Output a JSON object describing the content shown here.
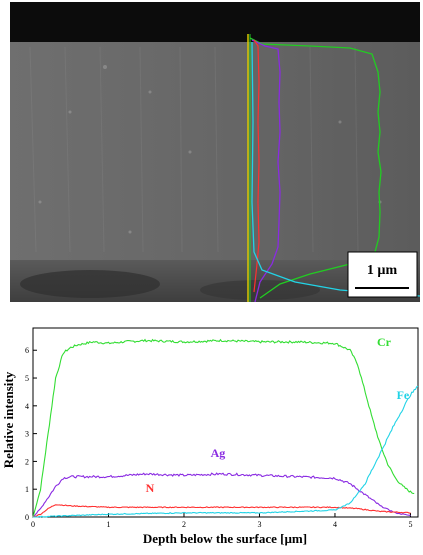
{
  "figure": {
    "micrograph": {
      "scale_bar_label": "1 µm",
      "overlay_lines": [
        {
          "element": "Cr",
          "color": "#22cc22"
        },
        {
          "element": "Ag",
          "color": "#8a2be2"
        },
        {
          "element": "N",
          "color": "#ff3030"
        },
        {
          "element": "Fe",
          "color": "#22d3e6"
        }
      ]
    }
  },
  "chart_data": {
    "type": "line",
    "title": "",
    "xlabel": "Depth below the surface [µm]",
    "ylabel": "Relative intensity",
    "xlim": [
      0,
      5.1
    ],
    "ylim": [
      0,
      6.8
    ],
    "xticks": [
      "0",
      "1",
      "2",
      "3",
      "4",
      "5"
    ],
    "yticks": [
      "0",
      "1",
      "2",
      "3",
      "4",
      "5",
      "6"
    ],
    "grid": false,
    "legend": "inline labels",
    "series": [
      {
        "name": "Cr",
        "color": "#33dd33",
        "x": [
          0.0,
          0.1,
          0.2,
          0.3,
          0.4,
          0.5,
          0.6,
          0.8,
          1.0,
          1.2,
          1.5,
          2.0,
          2.5,
          3.0,
          3.5,
          4.0,
          4.2,
          4.3,
          4.4,
          4.5,
          4.6,
          4.7,
          4.8,
          4.9,
          5.0,
          5.05
        ],
        "y": [
          0.0,
          1.0,
          3.0,
          5.0,
          5.9,
          6.1,
          6.2,
          6.3,
          6.25,
          6.3,
          6.35,
          6.3,
          6.35,
          6.3,
          6.3,
          6.25,
          6.0,
          5.5,
          4.5,
          3.5,
          2.6,
          1.9,
          1.4,
          1.1,
          0.9,
          0.85
        ]
      },
      {
        "name": "Ag",
        "color": "#8a2be2",
        "x": [
          0.0,
          0.1,
          0.2,
          0.3,
          0.4,
          0.5,
          1.0,
          1.5,
          2.0,
          2.5,
          3.0,
          3.5,
          4.0,
          4.2,
          4.4,
          4.6,
          4.8,
          5.0
        ],
        "y": [
          0.0,
          0.3,
          0.7,
          1.1,
          1.4,
          1.45,
          1.45,
          1.55,
          1.5,
          1.55,
          1.5,
          1.45,
          1.4,
          1.2,
          0.8,
          0.4,
          0.15,
          0.05
        ]
      },
      {
        "name": "N",
        "color": "#ff3030",
        "x": [
          0.0,
          0.1,
          0.2,
          0.3,
          0.5,
          1.0,
          2.0,
          3.0,
          4.0,
          4.3,
          4.6,
          5.0
        ],
        "y": [
          0.0,
          0.1,
          0.3,
          0.45,
          0.4,
          0.35,
          0.35,
          0.35,
          0.35,
          0.3,
          0.2,
          0.15
        ]
      },
      {
        "name": "Fe",
        "color": "#22d3e6",
        "x": [
          0.0,
          0.5,
          1.0,
          2.0,
          3.0,
          3.5,
          4.0,
          4.2,
          4.4,
          4.6,
          4.8,
          5.0,
          5.1
        ],
        "y": [
          0.0,
          0.05,
          0.1,
          0.15,
          0.15,
          0.2,
          0.25,
          0.5,
          1.2,
          2.3,
          3.4,
          4.4,
          4.7
        ]
      }
    ]
  }
}
